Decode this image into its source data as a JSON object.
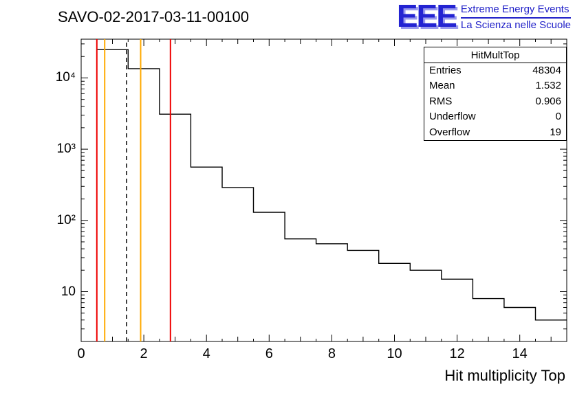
{
  "header": {
    "title": "SAVO-02-2017-03-11-00100"
  },
  "logo": {
    "eee": "EEE",
    "line1": "Extreme Energy Events",
    "line2": "La Scienza nelle Scuole",
    "color": "#2020c8"
  },
  "stats": {
    "title": "HitMultTop",
    "rows": [
      {
        "label": "Entries",
        "value": "48304"
      },
      {
        "label": "Mean",
        "value": "1.532"
      },
      {
        "label": "RMS",
        "value": "0.906"
      },
      {
        "label": "Underflow",
        "value": "0"
      },
      {
        "label": "Overflow",
        "value": "19"
      }
    ]
  },
  "chart_data": {
    "type": "bar",
    "style": "step-histogram",
    "title": "SAVO-02-2017-03-11-00100",
    "xlabel": "Hit multiplicity Top",
    "ylabel": "",
    "y_scale": "log",
    "x_range": [
      0,
      15.5
    ],
    "y_range": [
      2,
      35000
    ],
    "grid": false,
    "line_color": "#000000",
    "bin_edges": [
      0.5,
      1.5,
      2.5,
      3.5,
      4.5,
      5.5,
      6.5,
      7.5,
      8.5,
      9.5,
      10.5,
      11.5,
      12.5,
      13.5,
      14.5,
      15.5
    ],
    "counts": [
      25000,
      13500,
      3100,
      560,
      290,
      130,
      55,
      47,
      38,
      25,
      20,
      15,
      8,
      6,
      4
    ],
    "x_ticks_labeled": [
      0,
      2,
      4,
      6,
      8,
      10,
      12,
      14
    ],
    "y_ticks_labeled": [
      10,
      100,
      1000,
      10000
    ],
    "y_tick_labels": [
      "10",
      "10²",
      "10³",
      "10⁴"
    ],
    "vlines": [
      {
        "x": 0.5,
        "color": "#ee0000",
        "style": "solid"
      },
      {
        "x": 0.75,
        "color": "#ffaa00",
        "style": "solid"
      },
      {
        "x": 1.45,
        "color": "#000000",
        "style": "dashed"
      },
      {
        "x": 1.9,
        "color": "#ffaa00",
        "style": "solid"
      },
      {
        "x": 2.85,
        "color": "#ee0000",
        "style": "solid"
      }
    ]
  }
}
